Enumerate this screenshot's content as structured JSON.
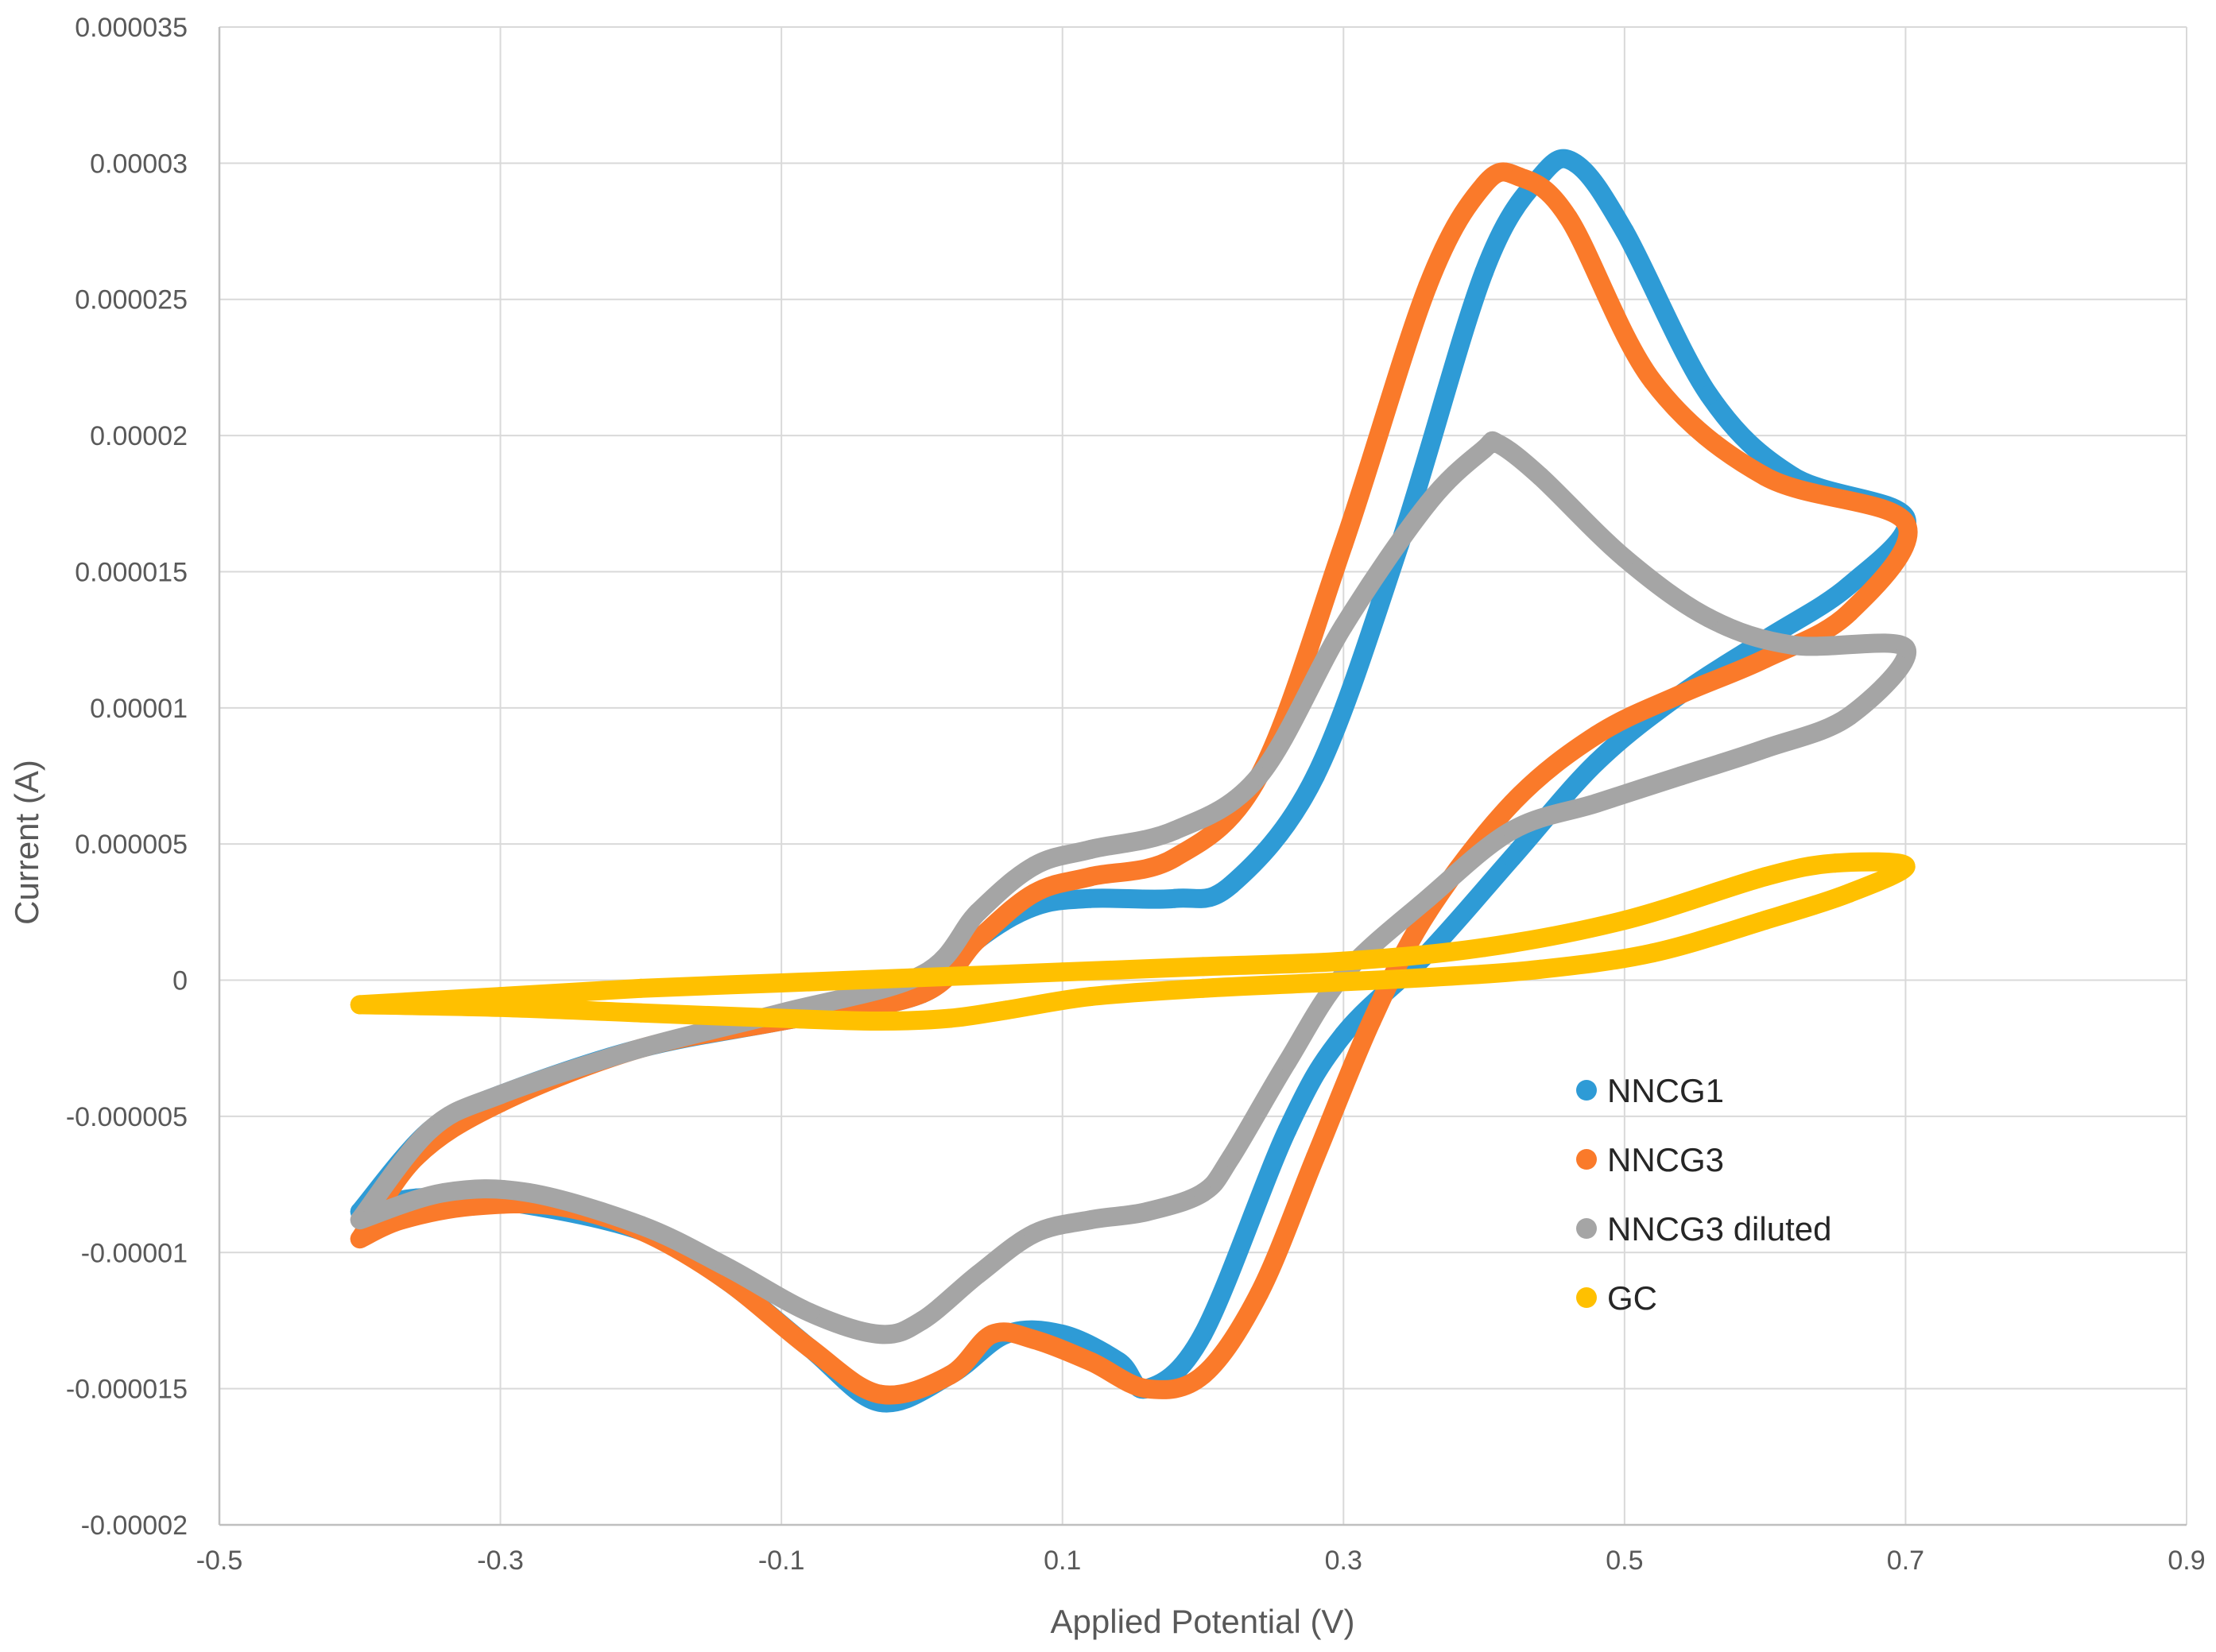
{
  "chart_data": {
    "type": "scatter",
    "title": "",
    "xlabel": "Applied Potential (V)",
    "ylabel": "Current (A)",
    "xlim": [
      -0.5,
      0.9
    ],
    "ylim": [
      -2e-05,
      3.5e-05
    ],
    "x_ticks": [
      -0.5,
      -0.3,
      -0.1,
      0.1,
      0.3,
      0.5,
      0.7,
      0.9
    ],
    "x_tick_labels": [
      "-0.5",
      "-0.3",
      "-0.1",
      "0.1",
      "0.3",
      "0.5",
      "0.7",
      "0.9"
    ],
    "y_ticks": [
      -2e-05,
      -1.5e-05,
      -1e-05,
      -5e-06,
      0,
      5e-06,
      1e-05,
      1.5e-05,
      2e-05,
      2.5e-05,
      3e-05,
      3.5e-05
    ],
    "y_tick_labels": [
      "-0.00002",
      "-0.000015",
      "-0.00001",
      "-0.000005",
      "0",
      "0.000005",
      "0.00001",
      "0.000015",
      "0.00002",
      "0.000025",
      "0.00003",
      "0.000035"
    ],
    "grid": true,
    "legend_position": "right-middle",
    "series": [
      {
        "name": "NNCG1",
        "color": "#2e9bd6",
        "x": [
          -0.4,
          -0.35,
          -0.3,
          -0.2,
          -0.1,
          0.0,
          0.04,
          0.08,
          0.12,
          0.18,
          0.22,
          0.28,
          0.34,
          0.4,
          0.44,
          0.465,
          0.5,
          0.56,
          0.62,
          0.7,
          0.66,
          0.6,
          0.54,
          0.48,
          0.42,
          0.36,
          0.3,
          0.26,
          0.2,
          0.16,
          0.14,
          0.1,
          0.06,
          0.02,
          -0.03,
          -0.08,
          -0.14,
          -0.2,
          -0.3,
          -0.36,
          -0.4
        ],
        "y": [
          -8.5e-06,
          -5.5e-06,
          -4.2e-06,
          -2.5e-06,
          -1.5e-06,
          -5e-07,
          1.5e-06,
          2.7e-06,
          3e-06,
          3e-06,
          3.5e-06,
          7.5e-06,
          1.6e-05,
          2.6e-05,
          2.95e-05,
          3e-05,
          2.75e-05,
          2.15e-05,
          1.85e-05,
          1.7e-05,
          1.45e-05,
          1.25e-05,
          1.05e-05,
          8e-06,
          4.5e-06,
          1e-06,
          -2e-06,
          -5.5e-06,
          -1.3e-05,
          -1.5e-05,
          -1.4e-05,
          -1.3e-05,
          -1.3e-05,
          -1.45e-05,
          -1.55e-05,
          -1.35e-05,
          -1.1e-05,
          -9.2e-06,
          -8.1e-06,
          -8e-06,
          -8.5e-06
        ]
      },
      {
        "name": "NNCG3",
        "color": "#fa7a2a",
        "x": [
          -0.4,
          -0.36,
          -0.3,
          -0.2,
          -0.1,
          0.0,
          0.04,
          0.08,
          0.12,
          0.18,
          0.24,
          0.3,
          0.36,
          0.4,
          0.425,
          0.46,
          0.52,
          0.6,
          0.7,
          0.66,
          0.6,
          0.54,
          0.48,
          0.42,
          0.36,
          0.32,
          0.28,
          0.24,
          0.2,
          0.16,
          0.12,
          0.08,
          0.05,
          0.02,
          -0.03,
          -0.08,
          -0.14,
          -0.2,
          -0.26,
          -0.32,
          -0.37,
          -0.4
        ],
        "y": [
          -9.5e-06,
          -6.5e-06,
          -4.5e-06,
          -2.5e-06,
          -1.5e-06,
          -5e-07,
          1.5e-06,
          3.2e-06,
          3.8e-06,
          4.5e-06,
          7.5e-06,
          1.6e-05,
          2.55e-05,
          2.92e-05,
          2.95e-05,
          2.8e-05,
          2.2e-05,
          1.85e-05,
          1.68e-05,
          1.35e-05,
          1.18e-05,
          1.05e-05,
          9e-06,
          6.5e-06,
          2.5e-06,
          -1.5e-06,
          -6.5e-06,
          -1.15e-05,
          -1.45e-05,
          -1.5e-05,
          -1.4e-05,
          -1.32e-05,
          -1.3e-05,
          -1.45e-05,
          -1.52e-05,
          -1.35e-05,
          -1.1e-05,
          -9.2e-06,
          -8.3e-06,
          -8.3e-06,
          -8.8e-06,
          -9.5e-06
        ]
      },
      {
        "name": "NNCG3 diluted",
        "color": "#a5a5a5",
        "x": [
          -0.4,
          -0.35,
          -0.3,
          -0.2,
          -0.1,
          0.0,
          0.04,
          0.08,
          0.12,
          0.18,
          0.24,
          0.3,
          0.36,
          0.4,
          0.41,
          0.44,
          0.5,
          0.56,
          0.62,
          0.7,
          0.66,
          0.6,
          0.54,
          0.48,
          0.42,
          0.36,
          0.3,
          0.26,
          0.22,
          0.2,
          0.16,
          0.12,
          0.08,
          0.04,
          0.0,
          -0.03,
          -0.08,
          -0.14,
          -0.2,
          -0.28,
          -0.34,
          -0.4
        ],
        "y": [
          -8.8e-06,
          -5.5e-06,
          -4.2e-06,
          -2.5e-06,
          -1.2e-06,
          2e-07,
          2.5e-06,
          4.2e-06,
          4.8e-06,
          5.5e-06,
          7.5e-06,
          1.3e-05,
          1.75e-05,
          1.95e-05,
          1.97e-05,
          1.85e-05,
          1.55e-05,
          1.33e-05,
          1.23e-05,
          1.22e-05,
          9.7e-06,
          8.5e-06,
          7.5e-06,
          6.5e-06,
          5.5e-06,
          3e-06,
          2e-07,
          -3e-06,
          -6.5e-06,
          -7.8e-06,
          -8.5e-06,
          -8.8e-06,
          -9.3e-06,
          -1.08e-05,
          -1.25e-05,
          -1.3e-05,
          -1.22e-05,
          -1.05e-05,
          -9e-06,
          -7.8e-06,
          -7.8e-06,
          -8.8e-06
        ]
      },
      {
        "name": "GC",
        "color": "#ffc000",
        "x": [
          -0.4,
          -0.3,
          -0.2,
          -0.1,
          0.0,
          0.1,
          0.2,
          0.3,
          0.4,
          0.5,
          0.6,
          0.65,
          0.7,
          0.66,
          0.6,
          0.52,
          0.44,
          0.36,
          0.28,
          0.2,
          0.12,
          0.06,
          0.02,
          -0.03,
          -0.1,
          -0.2,
          -0.3,
          -0.4
        ],
        "y": [
          -9e-07,
          -6e-07,
          -3e-07,
          -1e-07,
          1e-07,
          3e-07,
          5e-07,
          7e-07,
          1.2e-06,
          2.2e-06,
          3.8e-06,
          4.3e-06,
          4.2e-06,
          3.2e-06,
          2.2e-06,
          1e-06,
          4e-07,
          1e-07,
          -1e-07,
          -3e-07,
          -6e-07,
          -1.1e-06,
          -1.4e-06,
          -1.5e-06,
          -1.4e-06,
          -1.2e-06,
          -1e-06,
          -9e-07
        ]
      }
    ]
  }
}
